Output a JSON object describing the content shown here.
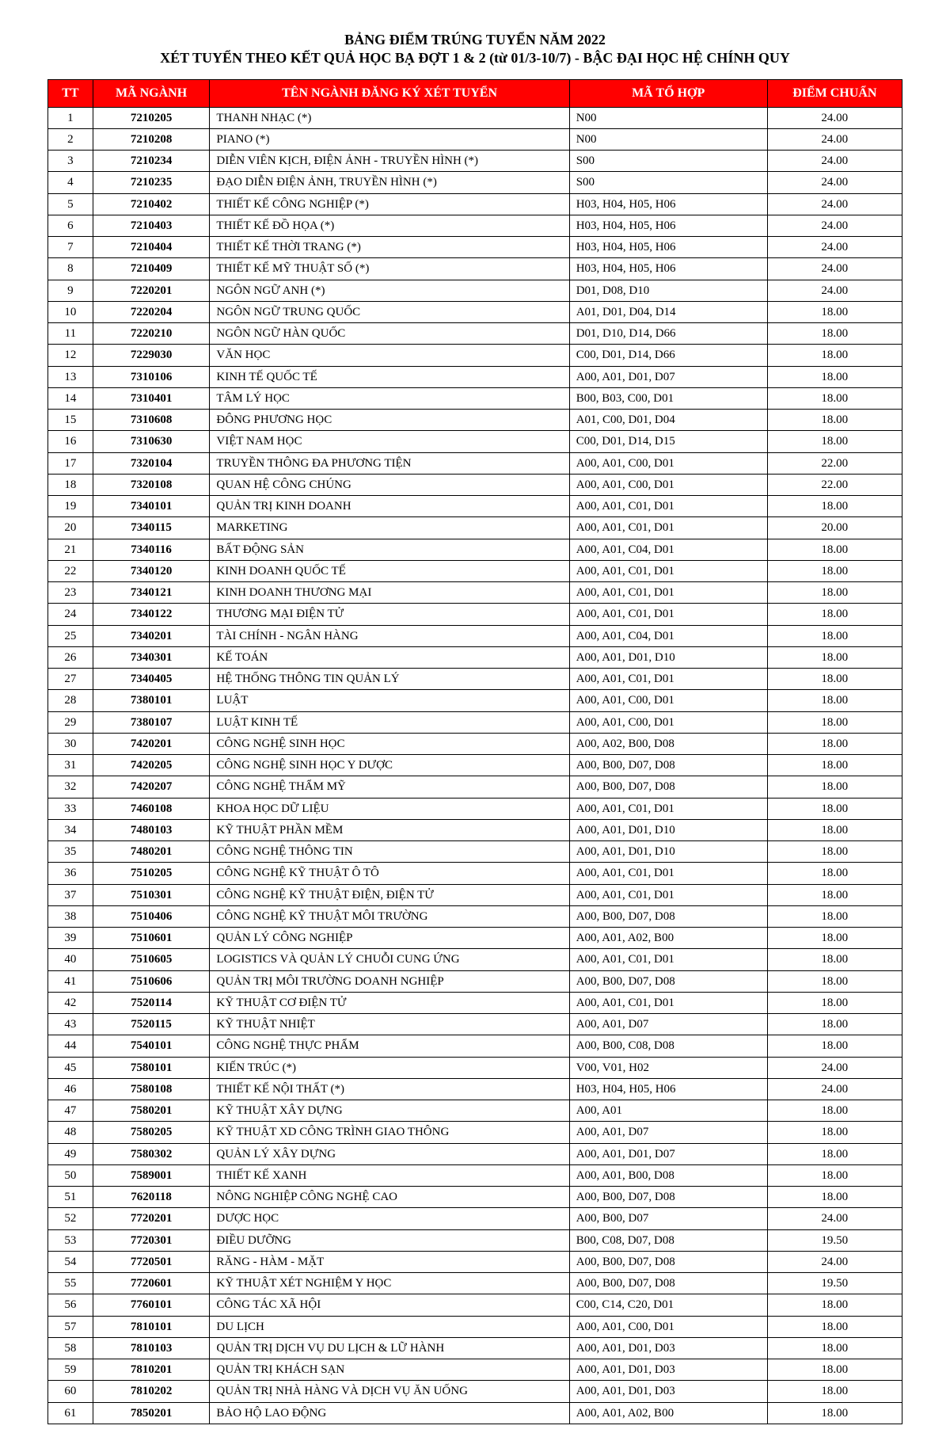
{
  "title": "BẢNG ĐIỂM TRÚNG TUYỂN NĂM 2022",
  "subtitle": "XÉT TUYỂN THEO KẾT QUẢ HỌC BẠ ĐỢT 1 & 2 (từ 01/3-10/7) - BẬC ĐẠI HỌC HỆ CHÍNH QUY",
  "columns": [
    "TT",
    "MÃ NGÀNH",
    "TÊN NGÀNH ĐĂNG KÝ XÉT TUYỂN",
    "MÃ TỔ HỢP",
    "ĐIỂM CHUẨN"
  ],
  "rows": [
    {
      "tt": "1",
      "code": "7210205",
      "name": "THANH NHẠC (*)",
      "combo": "N00",
      "score": "24.00"
    },
    {
      "tt": "2",
      "code": "7210208",
      "name": "PIANO (*)",
      "combo": "N00",
      "score": "24.00"
    },
    {
      "tt": "3",
      "code": "7210234",
      "name": "DIỄN VIÊN KỊCH, ĐIỆN ẢNH - TRUYỀN HÌNH (*)",
      "combo": "S00",
      "score": "24.00"
    },
    {
      "tt": "4",
      "code": "7210235",
      "name": "ĐẠO DIỄN ĐIỆN ẢNH, TRUYỀN HÌNH (*)",
      "combo": "S00",
      "score": "24.00"
    },
    {
      "tt": "5",
      "code": "7210402",
      "name": "THIẾT KẾ CÔNG NGHIỆP (*)",
      "combo": "H03, H04, H05, H06",
      "score": "24.00"
    },
    {
      "tt": "6",
      "code": "7210403",
      "name": "THIẾT KẾ ĐỒ HỌA (*)",
      "combo": "H03, H04, H05, H06",
      "score": "24.00"
    },
    {
      "tt": "7",
      "code": "7210404",
      "name": "THIẾT KẾ THỜI TRANG (*)",
      "combo": "H03, H04, H05, H06",
      "score": "24.00"
    },
    {
      "tt": "8",
      "code": "7210409",
      "name": "THIẾT KẾ MỸ THUẬT SỐ (*)",
      "combo": "H03, H04, H05, H06",
      "score": "24.00"
    },
    {
      "tt": "9",
      "code": "7220201",
      "name": "NGÔN NGỮ ANH (*)",
      "combo": "D01, D08, D10",
      "score": "24.00"
    },
    {
      "tt": "10",
      "code": "7220204",
      "name": "NGÔN NGỮ TRUNG QUỐC",
      "combo": "A01, D01, D04, D14",
      "score": "18.00"
    },
    {
      "tt": "11",
      "code": "7220210",
      "name": "NGÔN NGỮ HÀN QUỐC",
      "combo": "D01, D10, D14, D66",
      "score": "18.00"
    },
    {
      "tt": "12",
      "code": "7229030",
      "name": "VĂN HỌC",
      "combo": "C00, D01, D14, D66",
      "score": "18.00"
    },
    {
      "tt": "13",
      "code": "7310106",
      "name": "KINH TẾ QUỐC TẾ",
      "combo": "A00, A01, D01, D07",
      "score": "18.00"
    },
    {
      "tt": "14",
      "code": "7310401",
      "name": "TÂM LÝ HỌC",
      "combo": "B00, B03, C00, D01",
      "score": "18.00"
    },
    {
      "tt": "15",
      "code": "7310608",
      "name": "ĐÔNG PHƯƠNG HỌC",
      "combo": "A01, C00, D01, D04",
      "score": "18.00"
    },
    {
      "tt": "16",
      "code": "7310630",
      "name": "VIỆT NAM HỌC",
      "combo": "C00, D01, D14, D15",
      "score": "18.00"
    },
    {
      "tt": "17",
      "code": "7320104",
      "name": "TRUYỀN THÔNG ĐA PHƯƠNG TIỆN",
      "combo": "A00, A01, C00, D01",
      "score": "22.00"
    },
    {
      "tt": "18",
      "code": "7320108",
      "name": "QUAN HỆ CÔNG CHÚNG",
      "combo": "A00, A01, C00, D01",
      "score": "22.00"
    },
    {
      "tt": "19",
      "code": "7340101",
      "name": "QUẢN TRỊ KINH DOANH",
      "combo": "A00, A01, C01, D01",
      "score": "18.00"
    },
    {
      "tt": "20",
      "code": "7340115",
      "name": "MARKETING",
      "combo": "A00, A01, C01, D01",
      "score": "20.00"
    },
    {
      "tt": "21",
      "code": "7340116",
      "name": "BẤT ĐỘNG SẢN",
      "combo": "A00, A01, C04, D01",
      "score": "18.00"
    },
    {
      "tt": "22",
      "code": "7340120",
      "name": "KINH DOANH QUỐC TẾ",
      "combo": "A00, A01, C01, D01",
      "score": "18.00"
    },
    {
      "tt": "23",
      "code": "7340121",
      "name": "KINH DOANH THƯƠNG MẠI",
      "combo": "A00, A01, C01, D01",
      "score": "18.00"
    },
    {
      "tt": "24",
      "code": "7340122",
      "name": "THƯƠNG MẠI ĐIỆN TỬ",
      "combo": "A00, A01, C01, D01",
      "score": "18.00"
    },
    {
      "tt": "25",
      "code": "7340201",
      "name": "TÀI CHÍNH - NGÂN HÀNG",
      "combo": "A00, A01, C04, D01",
      "score": "18.00"
    },
    {
      "tt": "26",
      "code": "7340301",
      "name": "KẾ TOÁN",
      "combo": "A00, A01, D01, D10",
      "score": "18.00"
    },
    {
      "tt": "27",
      "code": "7340405",
      "name": "HỆ THỐNG THÔNG TIN QUẢN LÝ",
      "combo": "A00, A01, C01, D01",
      "score": "18.00"
    },
    {
      "tt": "28",
      "code": "7380101",
      "name": "LUẬT",
      "combo": "A00, A01, C00, D01",
      "score": "18.00"
    },
    {
      "tt": "29",
      "code": "7380107",
      "name": "LUẬT KINH TẾ",
      "combo": "A00, A01, C00, D01",
      "score": "18.00"
    },
    {
      "tt": "30",
      "code": "7420201",
      "name": "CÔNG NGHỆ SINH HỌC",
      "combo": "A00, A02, B00, D08",
      "score": "18.00"
    },
    {
      "tt": "31",
      "code": "7420205",
      "name": "CÔNG NGHỆ SINH HỌC Y DƯỢC",
      "combo": "A00, B00, D07, D08",
      "score": "18.00"
    },
    {
      "tt": "32",
      "code": "7420207",
      "name": "CÔNG NGHỆ THẨM MỸ",
      "combo": "A00, B00, D07, D08",
      "score": "18.00"
    },
    {
      "tt": "33",
      "code": "7460108",
      "name": "KHOA HỌC DỮ LIỆU",
      "combo": "A00, A01, C01, D01",
      "score": "18.00"
    },
    {
      "tt": "34",
      "code": "7480103",
      "name": "KỸ THUẬT PHẦN MỀM",
      "combo": "A00, A01, D01, D10",
      "score": "18.00"
    },
    {
      "tt": "35",
      "code": "7480201",
      "name": "CÔNG NGHỆ THÔNG TIN",
      "combo": "A00, A01, D01, D10",
      "score": "18.00"
    },
    {
      "tt": "36",
      "code": "7510205",
      "name": "CÔNG NGHỆ KỸ THUẬT Ô TÔ",
      "combo": "A00, A01, C01, D01",
      "score": "18.00"
    },
    {
      "tt": "37",
      "code": "7510301",
      "name": "CÔNG NGHỆ KỸ THUẬT ĐIỆN, ĐIỆN TỬ",
      "combo": "A00, A01, C01, D01",
      "score": "18.00"
    },
    {
      "tt": "38",
      "code": "7510406",
      "name": "CÔNG NGHỆ KỸ THUẬT MÔI TRƯỜNG",
      "combo": "A00, B00, D07, D08",
      "score": "18.00"
    },
    {
      "tt": "39",
      "code": "7510601",
      "name": "QUẢN LÝ CÔNG NGHIỆP",
      "combo": "A00, A01, A02, B00",
      "score": "18.00"
    },
    {
      "tt": "40",
      "code": "7510605",
      "name": "LOGISTICS VÀ QUẢN LÝ CHUỖI CUNG ỨNG",
      "combo": "A00, A01, C01, D01",
      "score": "18.00"
    },
    {
      "tt": "41",
      "code": "7510606",
      "name": "QUẢN TRỊ MÔI TRƯỜNG DOANH NGHIỆP",
      "combo": "A00, B00, D07, D08",
      "score": "18.00"
    },
    {
      "tt": "42",
      "code": "7520114",
      "name": "KỸ THUẬT CƠ ĐIỆN TỬ",
      "combo": "A00, A01, C01, D01",
      "score": "18.00"
    },
    {
      "tt": "43",
      "code": "7520115",
      "name": "KỸ THUẬT NHIỆT",
      "combo": "A00, A01, D07",
      "score": "18.00"
    },
    {
      "tt": "44",
      "code": "7540101",
      "name": "CÔNG NGHỆ THỰC PHẨM",
      "combo": "A00, B00, C08, D08",
      "score": "18.00"
    },
    {
      "tt": "45",
      "code": "7580101",
      "name": "KIẾN TRÚC (*)",
      "combo": "V00, V01, H02",
      "score": "24.00"
    },
    {
      "tt": "46",
      "code": "7580108",
      "name": "THIẾT KẾ NỘI THẤT (*)",
      "combo": "H03, H04, H05, H06",
      "score": "24.00"
    },
    {
      "tt": "47",
      "code": "7580201",
      "name": "KỸ THUẬT XÂY DỰNG",
      "combo": "A00, A01",
      "score": "18.00"
    },
    {
      "tt": "48",
      "code": "7580205",
      "name": "KỸ THUẬT XD CÔNG TRÌNH GIAO THÔNG",
      "combo": "A00, A01, D07",
      "score": "18.00"
    },
    {
      "tt": "49",
      "code": "7580302",
      "name": "QUẢN LÝ XÂY DỰNG",
      "combo": "A00, A01, D01, D07",
      "score": "18.00"
    },
    {
      "tt": "50",
      "code": "7589001",
      "name": "THIẾT KẾ XANH",
      "combo": "A00, A01, B00, D08",
      "score": "18.00"
    },
    {
      "tt": "51",
      "code": "7620118",
      "name": "NÔNG NGHIỆP CÔNG NGHỆ CAO",
      "combo": "A00, B00, D07, D08",
      "score": "18.00"
    },
    {
      "tt": "52",
      "code": "7720201",
      "name": "DƯỢC HỌC",
      "combo": "A00, B00, D07",
      "score": "24.00"
    },
    {
      "tt": "53",
      "code": "7720301",
      "name": "ĐIỀU DƯỠNG",
      "combo": "B00, C08, D07, D08",
      "score": "19.50"
    },
    {
      "tt": "54",
      "code": "7720501",
      "name": "RĂNG - HÀM - MẶT",
      "combo": "A00, B00, D07, D08",
      "score": "24.00"
    },
    {
      "tt": "55",
      "code": "7720601",
      "name": "KỸ THUẬT XÉT NGHIỆM Y HỌC",
      "combo": "A00, B00, D07, D08",
      "score": "19.50"
    },
    {
      "tt": "56",
      "code": "7760101",
      "name": "CÔNG TÁC XÃ HỘI",
      "combo": "C00, C14, C20, D01",
      "score": "18.00"
    },
    {
      "tt": "57",
      "code": "7810101",
      "name": "DU LỊCH",
      "combo": "A00, A01, C00, D01",
      "score": "18.00"
    },
    {
      "tt": "58",
      "code": "7810103",
      "name": "QUẢN TRỊ DỊCH VỤ DU LỊCH & LỮ HÀNH",
      "combo": "A00, A01, D01, D03",
      "score": "18.00"
    },
    {
      "tt": "59",
      "code": "7810201",
      "name": "QUẢN TRỊ KHÁCH SẠN",
      "combo": "A00, A01, D01, D03",
      "score": "18.00"
    },
    {
      "tt": "60",
      "code": "7810202",
      "name": "QUẢN TRỊ NHÀ HÀNG VÀ DỊCH VỤ ĂN UỐNG",
      "combo": "A00, A01, D01, D03",
      "score": "18.00"
    },
    {
      "tt": "61",
      "code": "7850201",
      "name": "BẢO HỘ LAO ĐỘNG",
      "combo": "A00, A01, A02, B00",
      "score": "18.00"
    }
  ]
}
